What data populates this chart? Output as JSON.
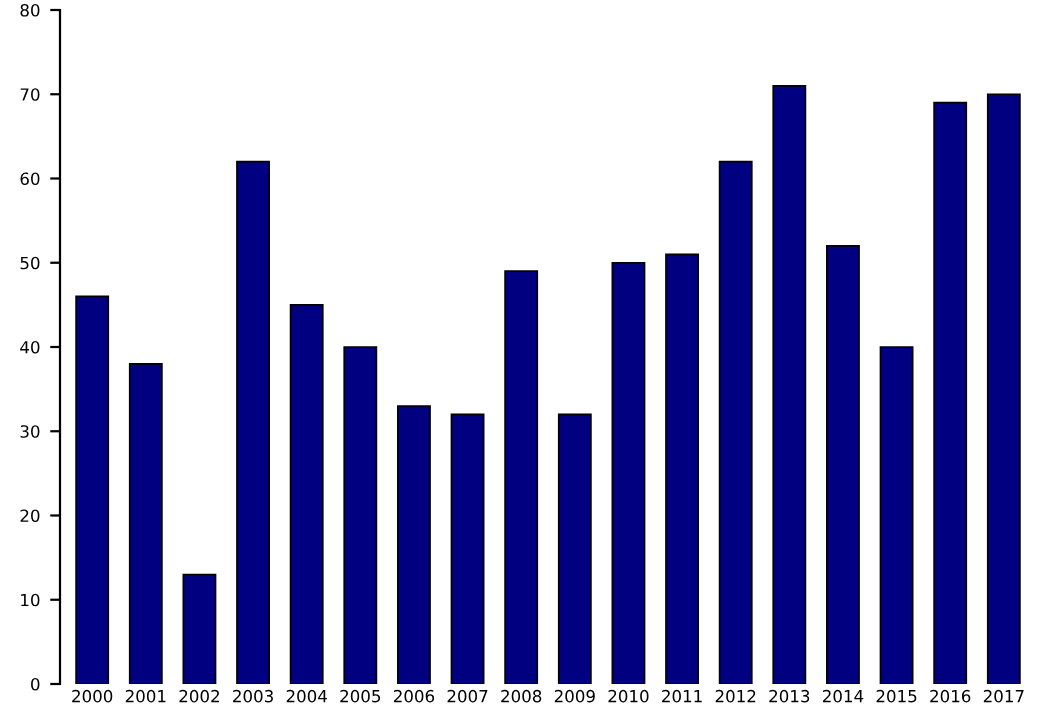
{
  "chart_data": {
    "type": "bar",
    "categories": [
      "2000",
      "2001",
      "2002",
      "2003",
      "2004",
      "2005",
      "2006",
      "2007",
      "2008",
      "2009",
      "2010",
      "2011",
      "2012",
      "2013",
      "2014",
      "2015",
      "2016",
      "2017"
    ],
    "values": [
      46,
      38,
      13,
      62,
      45,
      40,
      33,
      32,
      49,
      32,
      50,
      51,
      62,
      71,
      52,
      40,
      69,
      70
    ],
    "color": "#000080",
    "ylim": [
      0,
      80
    ],
    "yticks": [
      0,
      10,
      20,
      30,
      40,
      50,
      60,
      70,
      80
    ],
    "grid": false,
    "legend": false
  }
}
